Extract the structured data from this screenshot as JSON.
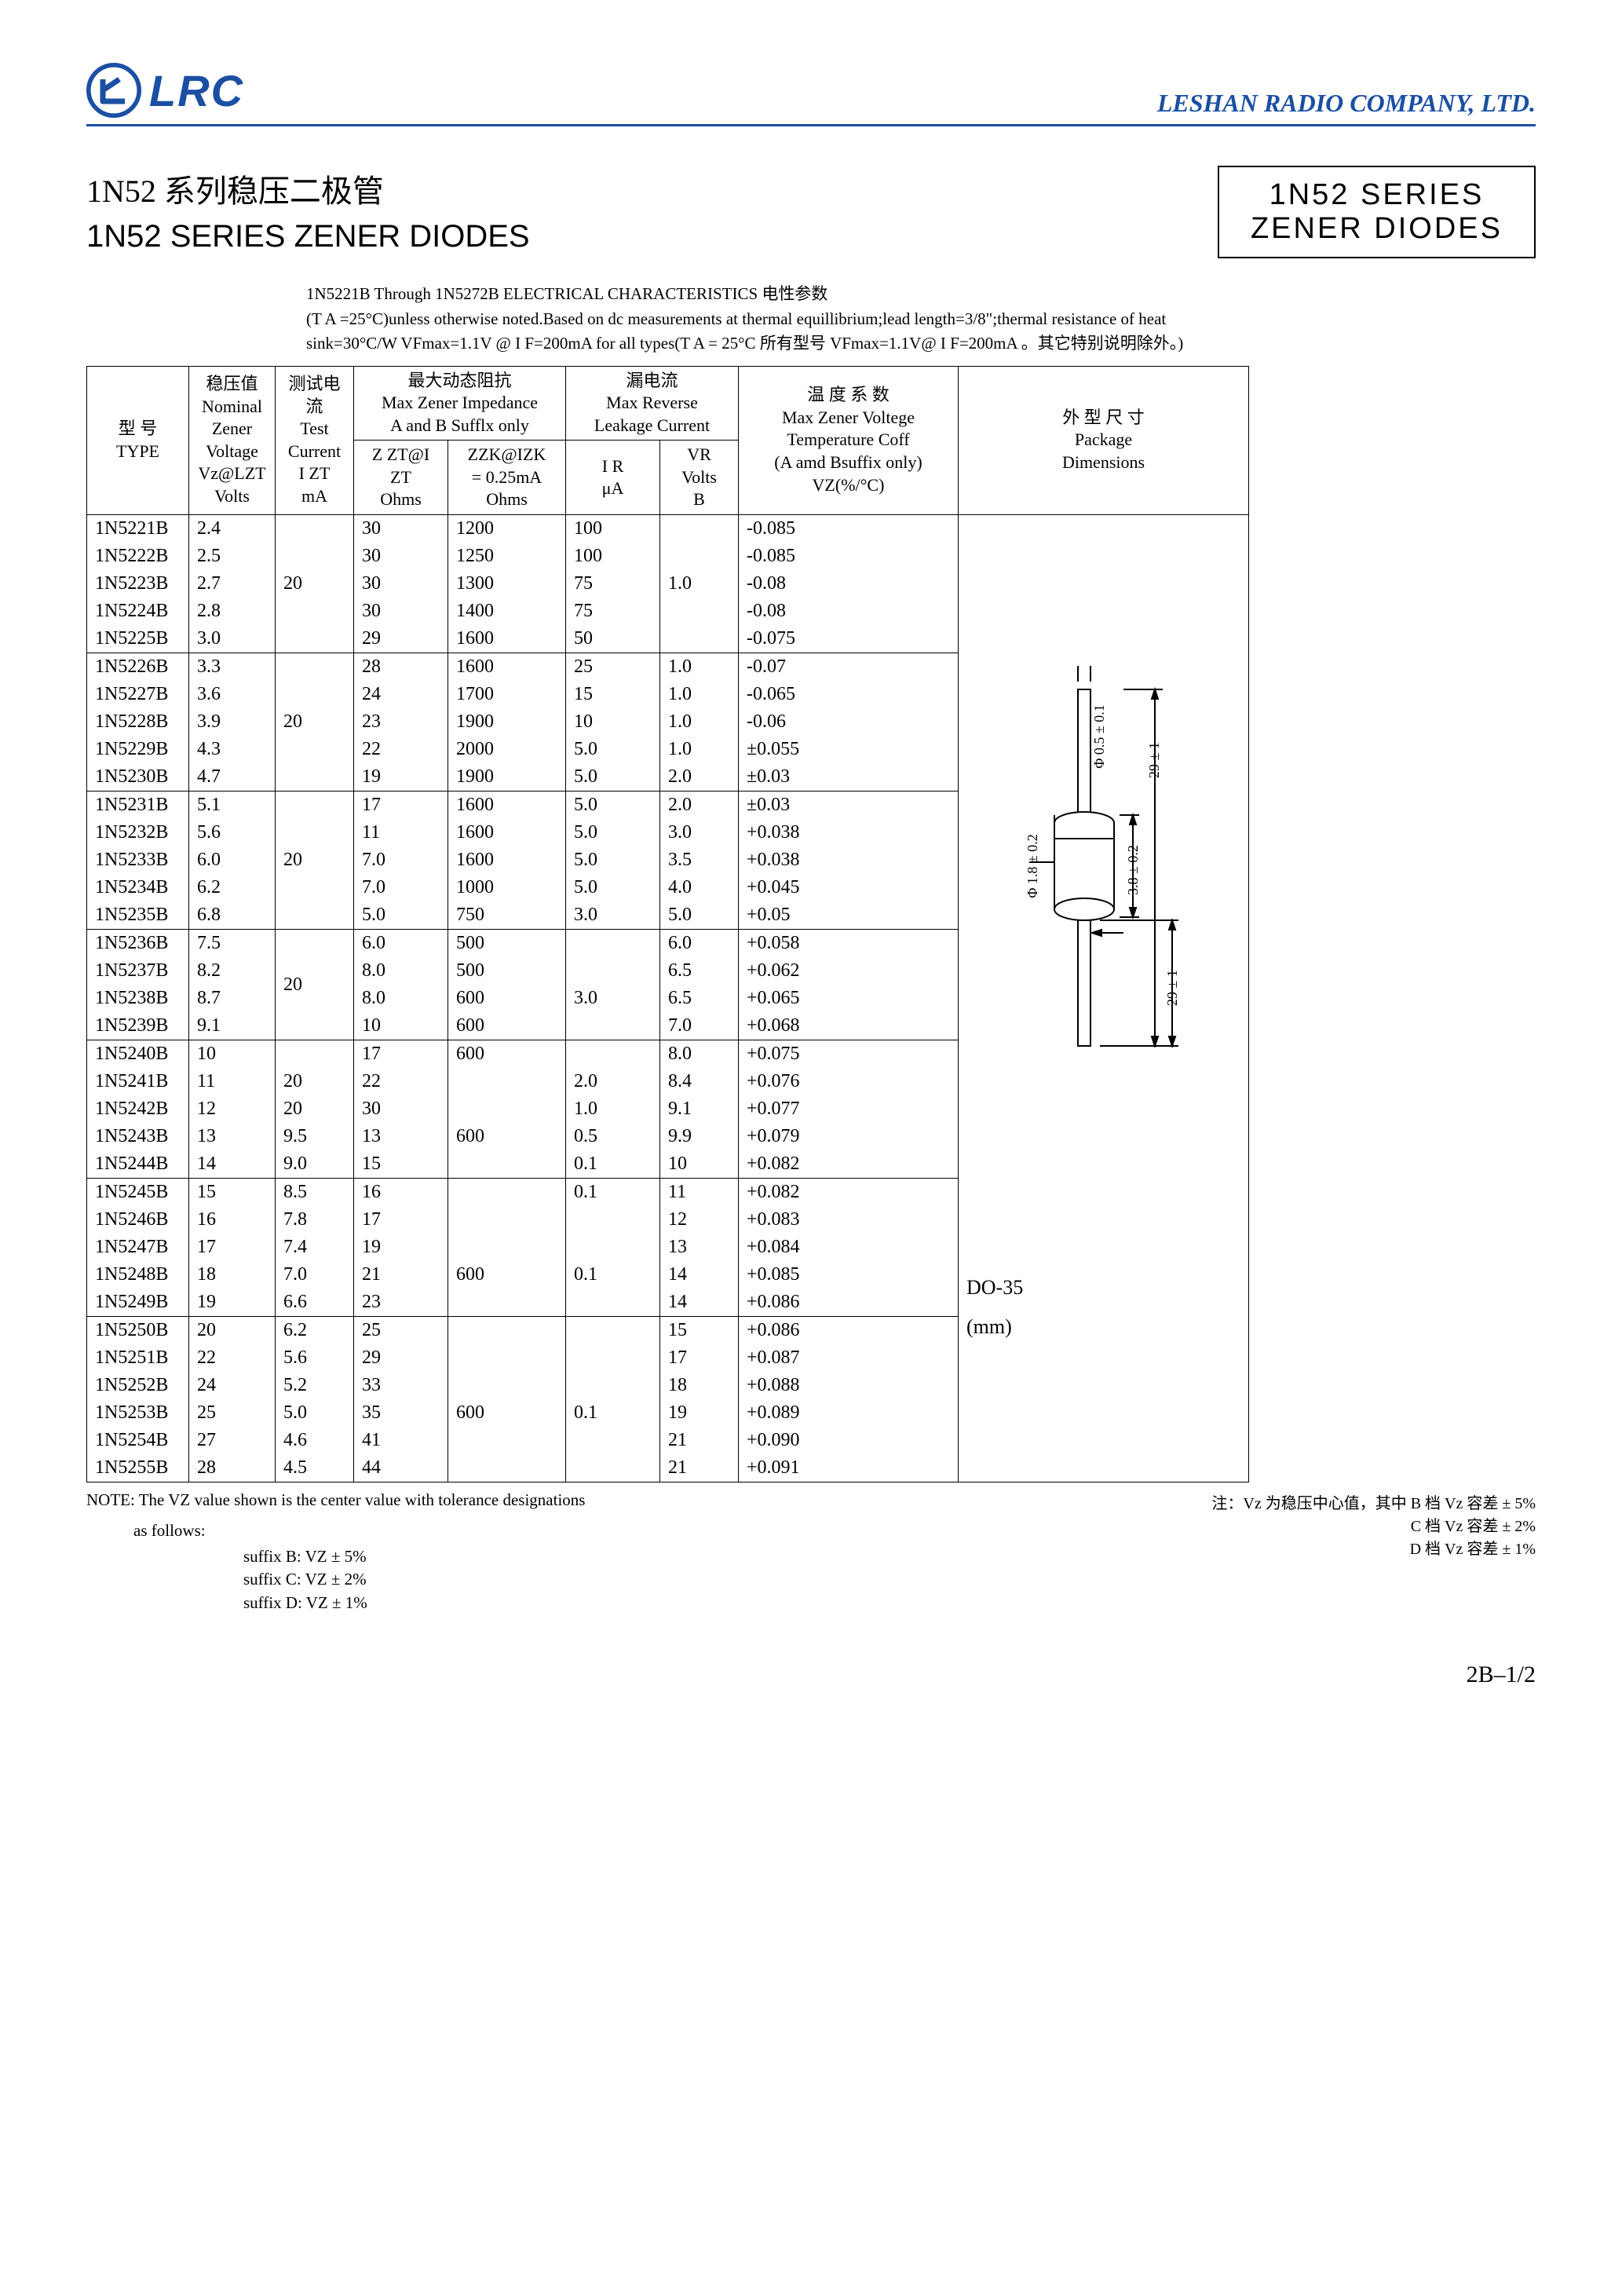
{
  "header": {
    "logo_text": "LRC",
    "company": "LESHAN RADIO COMPANY, LTD."
  },
  "titles": {
    "zh": "1N52 系列稳压二极管",
    "en": "1N52 SERIES ZENER DIODES",
    "box_line1": "1N52  SERIES",
    "box_line2": "ZENER  DIODES"
  },
  "intro": {
    "line1": "1N5221B Through 1N5272B ELECTRICAL CHARACTERISTICS 电性参数",
    "line2": "(T A =25°C)unless otherwise noted.Based on dc measurements at thermal equillibrium;lead length=3/8\";thermal resistance of heat",
    "line3": "sink=30°C/W  VFmax=1.1V @ I F=200mA for all types(T A = 25°C 所有型号 VFmax=1.1V@ I F=200mA 。其它特别说明除外。)"
  },
  "table": {
    "headers": {
      "type": "型  号\nTYPE",
      "vz": "稳压值\nNominal\nZener\nVoltage\nVz@LZT\nVolts",
      "izt": "测试电流\nTest\nCurrent\nI ZT\nmA",
      "impedance_group": "最大动态阻抗\nMax Zener Impedance\nA and B Sufflx only",
      "zzt": "Z ZT@I ZT\nOhms",
      "zzk": "ZZK@IZK\n= 0.25mA\nOhms",
      "leakage_group": "漏电流\nMax Reverse\nLeakage Current",
      "ir": "I R\nμA",
      "vr": "VR\nVolts\nB",
      "tc": "温 度 系 数\nMax Zener Voltege\nTemperature Coff\n(A amd Bsuffix only)\nVZ(%/°C)",
      "pkg": "外 型 尺 寸\nPackage\nDimensions"
    },
    "pkg_label1": "DO-35",
    "pkg_label2": "(mm)",
    "diagram": {
      "dim_phi_small": "Φ 0.5 ± 0.1",
      "dim_phi_body": "Φ 1.8 ± 0.2",
      "dim_len_total": "29 ± 1",
      "dim_len_body": "3.8 ± 0.2",
      "dim_len_lead": "29 ± 1"
    },
    "groups": [
      {
        "izt": "20",
        "rows": [
          {
            "type": "1N5221B",
            "vz": "2.4",
            "zzt": "30",
            "zzk": "1200",
            "ir": "100",
            "vr": "",
            "tc": "-0.085"
          },
          {
            "type": "1N5222B",
            "vz": "2.5",
            "zzt": "30",
            "zzk": "1250",
            "ir": "100",
            "vr": "",
            "tc": "-0.085"
          },
          {
            "type": "1N5223B",
            "vz": "2.7",
            "zzt": "30",
            "zzk": "1300",
            "ir": "75",
            "vr": "1.0",
            "tc": "-0.08"
          },
          {
            "type": "1N5224B",
            "vz": "2.8",
            "zzt": "30",
            "zzk": "1400",
            "ir": "75",
            "vr": "",
            "tc": "-0.08"
          },
          {
            "type": "1N5225B",
            "vz": "3.0",
            "zzt": "29",
            "zzk": "1600",
            "ir": "50",
            "vr": "",
            "tc": "-0.075"
          }
        ]
      },
      {
        "izt": "20",
        "rows": [
          {
            "type": "1N5226B",
            "vz": "3.3",
            "zzt": "28",
            "zzk": "1600",
            "ir": "25",
            "vr": "1.0",
            "tc": "-0.07"
          },
          {
            "type": "1N5227B",
            "vz": "3.6",
            "zzt": "24",
            "zzk": "1700",
            "ir": "15",
            "vr": "1.0",
            "tc": "-0.065"
          },
          {
            "type": "1N5228B",
            "vz": "3.9",
            "zzt": "23",
            "zzk": "1900",
            "ir": "10",
            "vr": "1.0",
            "tc": "-0.06"
          },
          {
            "type": "1N5229B",
            "vz": "4.3",
            "zzt": "22",
            "zzk": "2000",
            "ir": "5.0",
            "vr": "1.0",
            "tc": "±0.055"
          },
          {
            "type": "1N5230B",
            "vz": "4.7",
            "zzt": "19",
            "zzk": "1900",
            "ir": "5.0",
            "vr": "2.0",
            "tc": "±0.03"
          }
        ]
      },
      {
        "izt": "20",
        "rows": [
          {
            "type": "1N5231B",
            "vz": "5.1",
            "zzt": "17",
            "zzk": "1600",
            "ir": "5.0",
            "vr": "2.0",
            "tc": "±0.03"
          },
          {
            "type": "1N5232B",
            "vz": "5.6",
            "zzt": "11",
            "zzk": "1600",
            "ir": "5.0",
            "vr": "3.0",
            "tc": "+0.038"
          },
          {
            "type": "1N5233B",
            "vz": "6.0",
            "zzt": "7.0",
            "zzk": "1600",
            "ir": "5.0",
            "vr": "3.5",
            "tc": "+0.038"
          },
          {
            "type": "1N5234B",
            "vz": "6.2",
            "zzt": "7.0",
            "zzk": "1000",
            "ir": "5.0",
            "vr": "4.0",
            "tc": "+0.045"
          },
          {
            "type": "1N5235B",
            "vz": "6.8",
            "zzt": "5.0",
            "zzk": "750",
            "ir": "3.0",
            "vr": "5.0",
            "tc": "+0.05"
          }
        ]
      },
      {
        "izt": "20",
        "rows": [
          {
            "type": "1N5236B",
            "vz": "7.5",
            "zzt": "6.0",
            "zzk": "500",
            "ir": "",
            "vr": "6.0",
            "tc": "+0.058"
          },
          {
            "type": "1N5237B",
            "vz": "8.2",
            "zzt": "8.0",
            "zzk": "500",
            "ir": "",
            "vr": "6.5",
            "tc": "+0.062"
          },
          {
            "type": "1N5238B",
            "vz": "8.7",
            "zzt": "8.0",
            "zzk": "600",
            "ir": "3.0",
            "vr": "6.5",
            "tc": "+0.065"
          },
          {
            "type": "1N5239B",
            "vz": "9.1",
            "zzt": "10",
            "zzk": "600",
            "ir": "",
            "vr": "7.0",
            "tc": "+0.068"
          }
        ]
      },
      {
        "izt": null,
        "rows": [
          {
            "type": "1N5240B",
            "vz": "10",
            "izt": "",
            "zzt": "17",
            "zzk": "600",
            "ir": "",
            "vr": "8.0",
            "tc": "+0.075"
          },
          {
            "type": "1N5241B",
            "vz": "11",
            "izt": "20",
            "zzt": "22",
            "zzk": "",
            "ir": "2.0",
            "vr": "8.4",
            "tc": "+0.076"
          },
          {
            "type": "1N5242B",
            "vz": "12",
            "izt": "20",
            "zzt": "30",
            "zzk": "",
            "ir": "1.0",
            "vr": "9.1",
            "tc": "+0.077"
          },
          {
            "type": "1N5243B",
            "vz": "13",
            "izt": "9.5",
            "zzt": "13",
            "zzk": "600",
            "ir": "0.5",
            "vr": "9.9",
            "tc": "+0.079"
          },
          {
            "type": "1N5244B",
            "vz": "14",
            "izt": "9.0",
            "zzt": "15",
            "zzk": "",
            "ir": "0.1",
            "vr": "10",
            "tc": "+0.082"
          }
        ]
      },
      {
        "izt": null,
        "rows": [
          {
            "type": "1N5245B",
            "vz": "15",
            "izt": "8.5",
            "zzt": "16",
            "zzk": "",
            "ir": "0.1",
            "vr": "11",
            "tc": "+0.082"
          },
          {
            "type": "1N5246B",
            "vz": "16",
            "izt": "7.8",
            "zzt": "17",
            "zzk": "",
            "ir": "",
            "vr": "12",
            "tc": "+0.083"
          },
          {
            "type": "1N5247B",
            "vz": "17",
            "izt": "7.4",
            "zzt": "19",
            "zzk": "",
            "ir": "",
            "vr": "13",
            "tc": "+0.084"
          },
          {
            "type": "1N5248B",
            "vz": "18",
            "izt": "7.0",
            "zzt": "21",
            "zzk": "600",
            "ir": "0.1",
            "vr": "14",
            "tc": "+0.085"
          },
          {
            "type": "1N5249B",
            "vz": "19",
            "izt": "6.6",
            "zzt": "23",
            "zzk": "",
            "ir": "",
            "vr": "14",
            "tc": "+0.086"
          }
        ]
      },
      {
        "izt": null,
        "rows": [
          {
            "type": "1N5250B",
            "vz": "20",
            "izt": "6.2",
            "zzt": "25",
            "zzk": "",
            "ir": "",
            "vr": "15",
            "tc": "+0.086"
          },
          {
            "type": "1N5251B",
            "vz": "22",
            "izt": "5.6",
            "zzt": "29",
            "zzk": "",
            "ir": "",
            "vr": "17",
            "tc": "+0.087"
          },
          {
            "type": "1N5252B",
            "vz": "24",
            "izt": "5.2",
            "zzt": "33",
            "zzk": "",
            "ir": "",
            "vr": "18",
            "tc": "+0.088"
          },
          {
            "type": "1N5253B",
            "vz": "25",
            "izt": "5.0",
            "zzt": "35",
            "zzk": "600",
            "ir": "0.1",
            "vr": "19",
            "tc": "+0.089"
          },
          {
            "type": "1N5254B",
            "vz": "27",
            "izt": "4.6",
            "zzt": "41",
            "zzk": "",
            "ir": "",
            "vr": "21",
            "tc": "+0.090"
          },
          {
            "type": "1N5255B",
            "vz": "28",
            "izt": "4.5",
            "zzt": "44",
            "zzk": "",
            "ir": "",
            "vr": "21",
            "tc": "+0.091"
          }
        ]
      }
    ]
  },
  "footnotes": {
    "note_en": "NOTE: The VZ value shown is the center value with tolerance designations",
    "as_follows": "as  follows:",
    "suffix_b": "suffix B:  VZ ± 5%",
    "suffix_c": "suffix C:  VZ ± 2%",
    "suffix_d": "suffix D:  VZ ± 1%",
    "note_zh1": "注：Vz 为稳压中心值，其中 B 档 Vz 容差 ± 5%",
    "note_zh2": "C 档 Vz 容差 ± 2%",
    "note_zh3": "D 档 Vz 容差 ± 1%"
  },
  "page": "2B–1/2",
  "colors": {
    "brand": "#1a4fa3",
    "text": "#000000",
    "background": "#ffffff"
  }
}
